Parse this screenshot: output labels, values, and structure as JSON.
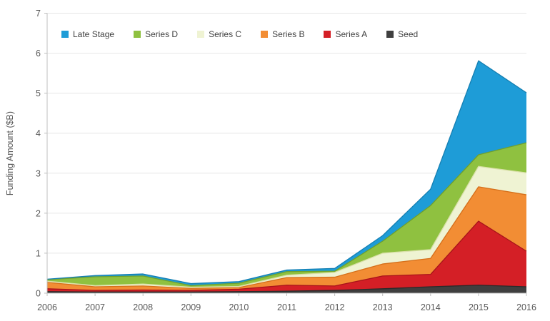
{
  "chart_data": {
    "type": "area",
    "stacked": true,
    "title": "",
    "xlabel": "",
    "ylabel": "Funding Amount ($B)",
    "x": [
      2006,
      2007,
      2008,
      2009,
      2010,
      2011,
      2012,
      2013,
      2014,
      2015,
      2016
    ],
    "x_tick_labels": [
      "2006",
      "2007",
      "2008",
      "2009",
      "2010",
      "2011",
      "2012",
      "2013",
      "2014",
      "2015",
      "2016"
    ],
    "y_tick_labels": [
      "0",
      "1",
      "2",
      "3",
      "4",
      "5",
      "6",
      "7"
    ],
    "ylim": [
      0,
      7
    ],
    "grid": true,
    "legend_position": "top-inside",
    "legend_order": [
      "Late Stage",
      "Series D",
      "Series C",
      "Series B",
      "Series A",
      "Seed"
    ],
    "series": [
      {
        "name": "Seed",
        "fill": "#3F3F3F",
        "edge": "#2A2A2A",
        "values": [
          0.04,
          0.03,
          0.03,
          0.03,
          0.04,
          0.05,
          0.07,
          0.11,
          0.16,
          0.2,
          0.16
        ]
      },
      {
        "name": "Series A",
        "fill": "#D41F26",
        "edge": "#A8141A",
        "values": [
          0.07,
          0.04,
          0.05,
          0.04,
          0.06,
          0.15,
          0.11,
          0.32,
          0.31,
          1.6,
          0.89
        ]
      },
      {
        "name": "Series B",
        "fill": "#F28D34",
        "edge": "#D56F1A",
        "values": [
          0.16,
          0.09,
          0.1,
          0.05,
          0.04,
          0.19,
          0.22,
          0.3,
          0.4,
          0.86,
          1.41
        ]
      },
      {
        "name": "Series C",
        "fill": "#EFF3D3",
        "edge": "#D9E0A8",
        "values": [
          0.03,
          0.03,
          0.05,
          0.03,
          0.03,
          0.06,
          0.12,
          0.27,
          0.22,
          0.51,
          0.55
        ]
      },
      {
        "name": "Series D",
        "fill": "#8FC140",
        "edge": "#6FA02C",
        "values": [
          0.04,
          0.22,
          0.2,
          0.04,
          0.08,
          0.09,
          0.03,
          0.3,
          1.1,
          0.29,
          0.75
        ]
      },
      {
        "name": "Late Stage",
        "fill": "#1E9CD7",
        "edge": "#157FB2",
        "values": [
          0.01,
          0.03,
          0.05,
          0.05,
          0.04,
          0.04,
          0.07,
          0.14,
          0.41,
          2.35,
          1.25
        ]
      }
    ],
    "colors": {
      "gridline": "#E6E6E6",
      "axis": "#BFBFBF",
      "tick_label": "#595959",
      "legend_text": "#404040"
    }
  }
}
